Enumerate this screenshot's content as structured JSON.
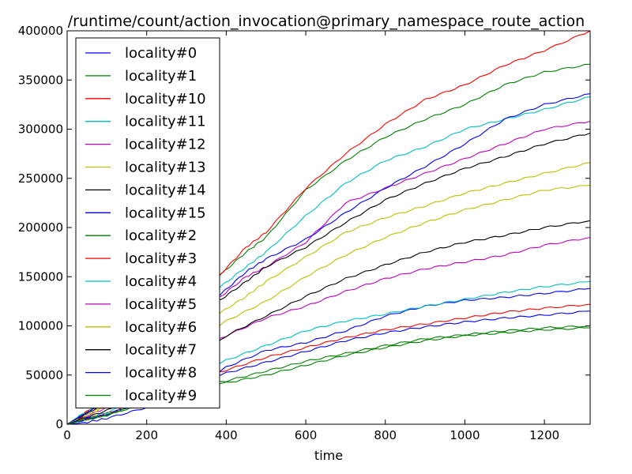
{
  "chart_data": {
    "type": "line",
    "title": "/runtime/count/action_invocation@primary_namespace_route_action",
    "xlabel": "time",
    "ylabel": "",
    "xlim": [
      0,
      1315
    ],
    "ylim": [
      0,
      400000
    ],
    "xticks": [
      0,
      200,
      400,
      600,
      800,
      1000,
      1200
    ],
    "yticks": [
      0,
      50000,
      100000,
      150000,
      200000,
      250000,
      300000,
      350000,
      400000
    ],
    "grid": false,
    "legend_position": "upper-left",
    "series": [
      {
        "name": "locality#0",
        "color": "#0000ff",
        "values": [
          [
            0,
            0
          ],
          [
            50,
            2000
          ],
          [
            100,
            6000
          ],
          [
            200,
            17000
          ],
          [
            300,
            30000
          ],
          [
            400,
            58000
          ],
          [
            500,
            75000
          ],
          [
            600,
            83000
          ],
          [
            700,
            95000
          ],
          [
            800,
            110000
          ],
          [
            900,
            120000
          ],
          [
            1000,
            126000
          ],
          [
            1100,
            129000
          ],
          [
            1200,
            133000
          ],
          [
            1315,
            138000
          ]
        ]
      },
      {
        "name": "locality#1",
        "color": "#008000",
        "values": [
          [
            0,
            0
          ],
          [
            30,
            8000
          ],
          [
            100,
            25000
          ],
          [
            200,
            60000
          ],
          [
            300,
            100000
          ],
          [
            380,
            150000
          ],
          [
            450,
            175000
          ],
          [
            500,
            190000
          ],
          [
            600,
            238000
          ],
          [
            700,
            268000
          ],
          [
            800,
            292000
          ],
          [
            900,
            310000
          ],
          [
            1000,
            325000
          ],
          [
            1100,
            345000
          ],
          [
            1200,
            358000
          ],
          [
            1315,
            366000
          ]
        ]
      },
      {
        "name": "locality#10",
        "color": "#ff0000",
        "values": [
          [
            0,
            0
          ],
          [
            30,
            8000
          ],
          [
            100,
            25000
          ],
          [
            200,
            62000
          ],
          [
            300,
            108000
          ],
          [
            380,
            150000
          ],
          [
            450,
            180000
          ],
          [
            500,
            195000
          ],
          [
            600,
            240000
          ],
          [
            700,
            275000
          ],
          [
            800,
            305000
          ],
          [
            900,
            330000
          ],
          [
            1000,
            345000
          ],
          [
            1100,
            365000
          ],
          [
            1200,
            380000
          ],
          [
            1315,
            400000
          ]
        ]
      },
      {
        "name": "locality#11",
        "color": "#00bfbf",
        "values": [
          [
            0,
            0
          ],
          [
            30,
            8000
          ],
          [
            100,
            24000
          ],
          [
            200,
            58000
          ],
          [
            300,
            98000
          ],
          [
            380,
            138000
          ],
          [
            450,
            160000
          ],
          [
            500,
            175000
          ],
          [
            600,
            212000
          ],
          [
            700,
            245000
          ],
          [
            800,
            268000
          ],
          [
            900,
            282000
          ],
          [
            1000,
            300000
          ],
          [
            1100,
            310000
          ],
          [
            1200,
            320000
          ],
          [
            1315,
            333000
          ]
        ]
      },
      {
        "name": "locality#12",
        "color": "#bf00bf",
        "values": [
          [
            0,
            0
          ],
          [
            30,
            7000
          ],
          [
            100,
            22000
          ],
          [
            200,
            54000
          ],
          [
            300,
            92000
          ],
          [
            380,
            128000
          ],
          [
            450,
            150000
          ],
          [
            500,
            160000
          ],
          [
            600,
            185000
          ],
          [
            700,
            225000
          ],
          [
            800,
            240000
          ],
          [
            900,
            255000
          ],
          [
            1000,
            270000
          ],
          [
            1100,
            285000
          ],
          [
            1200,
            300000
          ],
          [
            1315,
            308000
          ]
        ]
      },
      {
        "name": "locality#13",
        "color": "#bfbf00",
        "values": [
          [
            0,
            0
          ],
          [
            30,
            6000
          ],
          [
            100,
            20000
          ],
          [
            200,
            48000
          ],
          [
            300,
            82000
          ],
          [
            380,
            112000
          ],
          [
            450,
            130000
          ],
          [
            500,
            145000
          ],
          [
            600,
            170000
          ],
          [
            700,
            195000
          ],
          [
            800,
            210000
          ],
          [
            900,
            222000
          ],
          [
            1000,
            235000
          ],
          [
            1100,
            245000
          ],
          [
            1200,
            255000
          ],
          [
            1315,
            266000
          ]
        ]
      },
      {
        "name": "locality#14",
        "color": "#000000",
        "values": [
          [
            0,
            0
          ],
          [
            30,
            7000
          ],
          [
            100,
            22000
          ],
          [
            200,
            55000
          ],
          [
            300,
            90000
          ],
          [
            380,
            125000
          ],
          [
            450,
            145000
          ],
          [
            500,
            160000
          ],
          [
            600,
            180000
          ],
          [
            700,
            205000
          ],
          [
            800,
            228000
          ],
          [
            900,
            245000
          ],
          [
            1000,
            260000
          ],
          [
            1100,
            272000
          ],
          [
            1200,
            285000
          ],
          [
            1315,
            296000
          ]
        ]
      },
      {
        "name": "locality#15",
        "color": "#0000ff",
        "values": [
          [
            0,
            0
          ],
          [
            30,
            7000
          ],
          [
            100,
            23000
          ],
          [
            200,
            57000
          ],
          [
            300,
            95000
          ],
          [
            380,
            130000
          ],
          [
            450,
            155000
          ],
          [
            500,
            168000
          ],
          [
            600,
            188000
          ],
          [
            700,
            215000
          ],
          [
            800,
            240000
          ],
          [
            900,
            262000
          ],
          [
            1000,
            285000
          ],
          [
            1100,
            310000
          ],
          [
            1200,
            325000
          ],
          [
            1315,
            336000
          ]
        ]
      },
      {
        "name": "locality#2",
        "color": "#008000",
        "values": [
          [
            0,
            0
          ],
          [
            30,
            3000
          ],
          [
            100,
            9000
          ],
          [
            200,
            22000
          ],
          [
            300,
            38000
          ],
          [
            400,
            42000
          ],
          [
            500,
            50000
          ],
          [
            600,
            60000
          ],
          [
            700,
            70000
          ],
          [
            800,
            78000
          ],
          [
            900,
            85000
          ],
          [
            1000,
            90000
          ],
          [
            1100,
            93000
          ],
          [
            1200,
            96000
          ],
          [
            1315,
            98000
          ]
        ]
      },
      {
        "name": "locality#3",
        "color": "#ff0000",
        "values": [
          [
            0,
            0
          ],
          [
            30,
            4000
          ],
          [
            100,
            11000
          ],
          [
            200,
            25000
          ],
          [
            300,
            42000
          ],
          [
            400,
            55000
          ],
          [
            500,
            68000
          ],
          [
            600,
            78000
          ],
          [
            700,
            88000
          ],
          [
            800,
            96000
          ],
          [
            900,
            102000
          ],
          [
            1000,
            108000
          ],
          [
            1100,
            114000
          ],
          [
            1200,
            118000
          ],
          [
            1315,
            122000
          ]
        ]
      },
      {
        "name": "locality#4",
        "color": "#00bfbf",
        "values": [
          [
            0,
            0
          ],
          [
            30,
            4000
          ],
          [
            100,
            12000
          ],
          [
            200,
            28000
          ],
          [
            300,
            47000
          ],
          [
            400,
            65000
          ],
          [
            500,
            80000
          ],
          [
            600,
            95000
          ],
          [
            700,
            105000
          ],
          [
            800,
            112000
          ],
          [
            900,
            120000
          ],
          [
            1000,
            127000
          ],
          [
            1100,
            134000
          ],
          [
            1200,
            140000
          ],
          [
            1315,
            145000
          ]
        ]
      },
      {
        "name": "locality#5",
        "color": "#bf00bf",
        "values": [
          [
            0,
            0
          ],
          [
            30,
            5000
          ],
          [
            100,
            17000
          ],
          [
            200,
            42000
          ],
          [
            300,
            72000
          ],
          [
            400,
            90000
          ],
          [
            500,
            108000
          ],
          [
            600,
            120000
          ],
          [
            700,
            135000
          ],
          [
            800,
            148000
          ],
          [
            900,
            158000
          ],
          [
            1000,
            165000
          ],
          [
            1100,
            172000
          ],
          [
            1200,
            182000
          ],
          [
            1315,
            190000
          ]
        ]
      },
      {
        "name": "locality#6",
        "color": "#bfbf00",
        "values": [
          [
            0,
            0
          ],
          [
            30,
            5500
          ],
          [
            100,
            18000
          ],
          [
            200,
            44000
          ],
          [
            300,
            78000
          ],
          [
            400,
            105000
          ],
          [
            500,
            125000
          ],
          [
            600,
            150000
          ],
          [
            700,
            172000
          ],
          [
            800,
            190000
          ],
          [
            900,
            205000
          ],
          [
            1000,
            218000
          ],
          [
            1100,
            228000
          ],
          [
            1200,
            238000
          ],
          [
            1315,
            243000
          ]
        ]
      },
      {
        "name": "locality#7",
        "color": "#000000",
        "values": [
          [
            0,
            0
          ],
          [
            30,
            4500
          ],
          [
            100,
            14000
          ],
          [
            200,
            33000
          ],
          [
            300,
            58000
          ],
          [
            400,
            90000
          ],
          [
            500,
            110000
          ],
          [
            600,
            130000
          ],
          [
            700,
            148000
          ],
          [
            800,
            162000
          ],
          [
            900,
            175000
          ],
          [
            1000,
            185000
          ],
          [
            1100,
            192000
          ],
          [
            1200,
            200000
          ],
          [
            1315,
            207000
          ]
        ]
      },
      {
        "name": "locality#8",
        "color": "#0000ff",
        "values": [
          [
            0,
            0
          ],
          [
            30,
            3500
          ],
          [
            100,
            10000
          ],
          [
            200,
            24000
          ],
          [
            300,
            40000
          ],
          [
            400,
            52000
          ],
          [
            500,
            63000
          ],
          [
            600,
            74000
          ],
          [
            700,
            85000
          ],
          [
            800,
            93000
          ],
          [
            900,
            99000
          ],
          [
            1000,
            104000
          ],
          [
            1100,
            108000
          ],
          [
            1200,
            111000
          ],
          [
            1315,
            115000
          ]
        ]
      },
      {
        "name": "locality#9",
        "color": "#008000",
        "values": [
          [
            0,
            0
          ],
          [
            30,
            3000
          ],
          [
            100,
            9500
          ],
          [
            200,
            23000
          ],
          [
            300,
            38000
          ],
          [
            400,
            44000
          ],
          [
            500,
            54000
          ],
          [
            600,
            64000
          ],
          [
            700,
            72000
          ],
          [
            800,
            80000
          ],
          [
            900,
            87000
          ],
          [
            1000,
            91000
          ],
          [
            1100,
            95000
          ],
          [
            1200,
            98000
          ],
          [
            1315,
            100000
          ]
        ]
      }
    ]
  }
}
